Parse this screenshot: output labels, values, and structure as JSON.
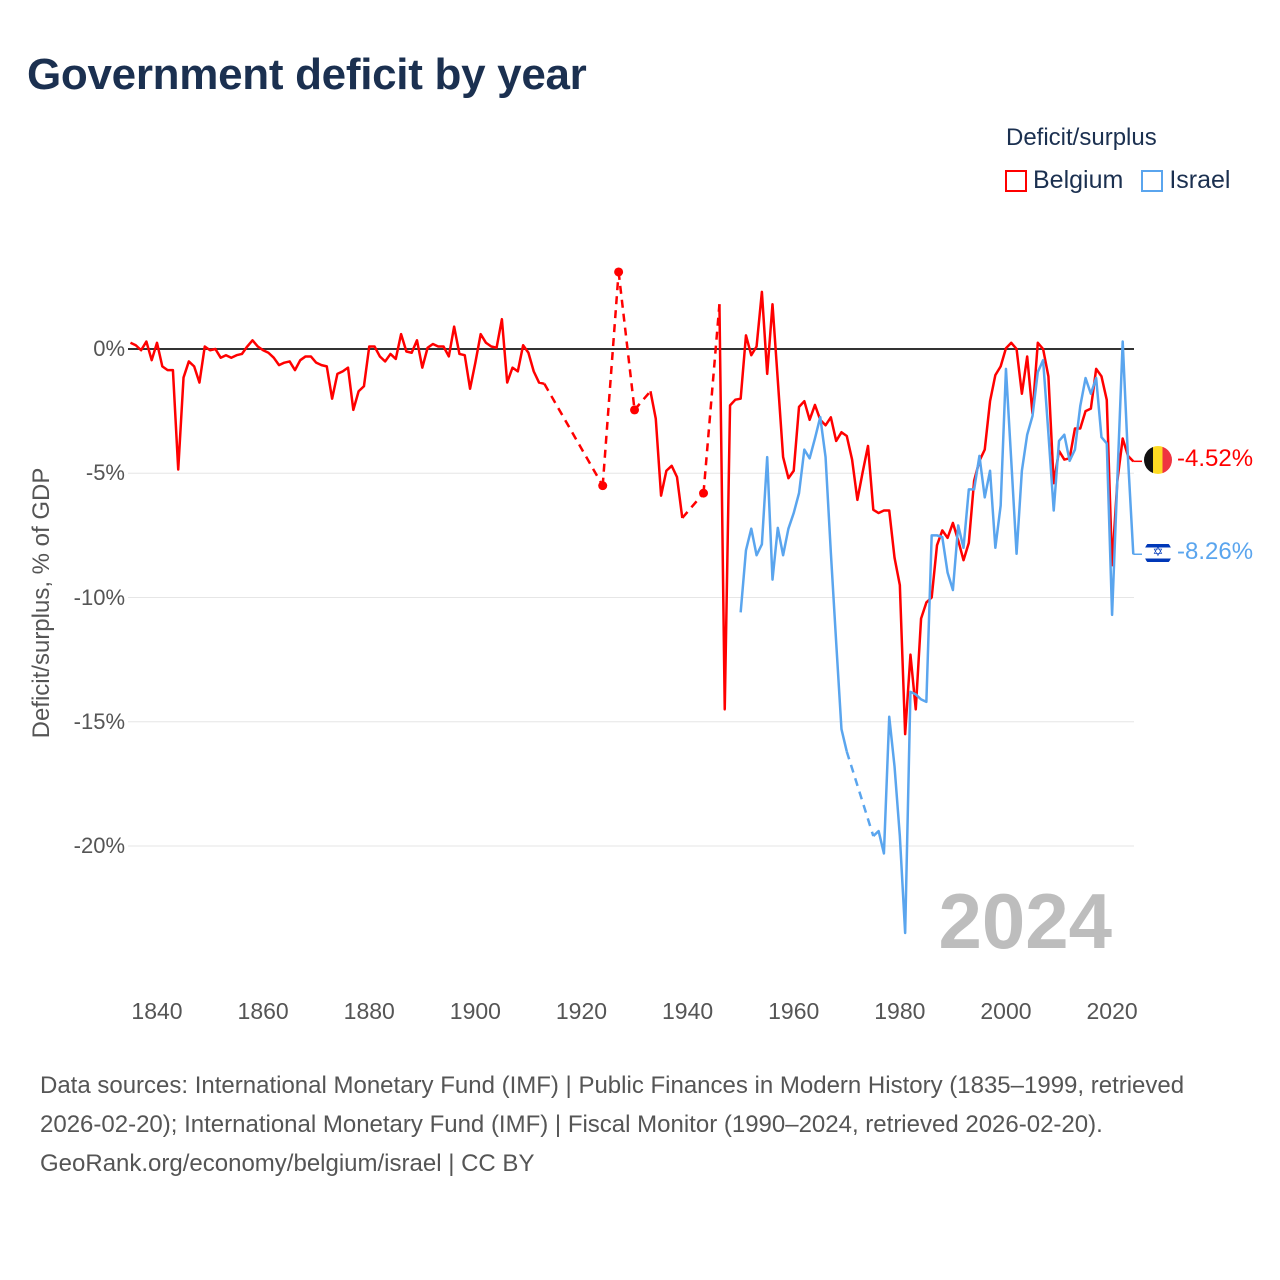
{
  "title": "Government deficit by year",
  "legend": {
    "title": "Deficit/surplus",
    "items": [
      {
        "label": "Belgium",
        "color": "#ff0000"
      },
      {
        "label": "Israel",
        "color": "#5aa5ee"
      }
    ]
  },
  "current_year": "2024",
  "end_labels": {
    "belgium": "-4.52%",
    "israel": "-8.26%"
  },
  "footer": {
    "sources": "Data sources: International Monetary Fund (IMF) | Public Finances in Modern History (1835–1999, retrieved 2026-02-20); International Monetary Fund (IMF) | Fiscal Monitor (1990–2024, retrieved 2026-02-20).",
    "credit": "GeoRank.org/economy/belgium/israel | CC BY"
  },
  "chart_data": {
    "type": "line",
    "title": "Government deficit by year",
    "xlabel": "",
    "ylabel": "Deficit/surplus, % of GDP",
    "xlim": [
      1835,
      2024
    ],
    "ylim": [
      -24,
      3.5
    ],
    "x_ticks": [
      "1840",
      "1860",
      "1880",
      "1900",
      "1920",
      "1940",
      "1960",
      "1980",
      "2000",
      "2020"
    ],
    "y_ticks": [
      "0%",
      "-5%",
      "-10%",
      "-15%",
      "-20%"
    ],
    "grid": true,
    "legend_position": "top-right",
    "series": [
      {
        "name": "Belgium",
        "color": "#ff0000",
        "points": [
          [
            1835,
            0.25
          ],
          [
            1836,
            0.15
          ],
          [
            1837,
            -0.05
          ],
          [
            1838,
            0.3
          ],
          [
            1839,
            -0.45
          ],
          [
            1840,
            0.25
          ],
          [
            1841,
            -0.7
          ],
          [
            1842,
            -0.85
          ],
          [
            1843,
            -0.85
          ],
          [
            1844,
            -4.85
          ],
          [
            1845,
            -1.15
          ],
          [
            1846,
            -0.5
          ],
          [
            1847,
            -0.7
          ],
          [
            1848,
            -1.35
          ],
          [
            1849,
            0.1
          ],
          [
            1850,
            -0.05
          ],
          [
            1851,
            0
          ],
          [
            1852,
            -0.35
          ],
          [
            1853,
            -0.25
          ],
          [
            1854,
            -0.35
          ],
          [
            1855,
            -0.25
          ],
          [
            1856,
            -0.2
          ],
          [
            1857,
            0.1
          ],
          [
            1858,
            0.35
          ],
          [
            1859,
            0.1
          ],
          [
            1860,
            -0.05
          ],
          [
            1861,
            -0.15
          ],
          [
            1862,
            -0.35
          ],
          [
            1863,
            -0.65
          ],
          [
            1864,
            -0.55
          ],
          [
            1865,
            -0.5
          ],
          [
            1866,
            -0.85
          ],
          [
            1867,
            -0.45
          ],
          [
            1868,
            -0.3
          ],
          [
            1869,
            -0.3
          ],
          [
            1870,
            -0.55
          ],
          [
            1871,
            -0.65
          ],
          [
            1872,
            -0.7
          ],
          [
            1873,
            -2.0
          ],
          [
            1874,
            -1.0
          ],
          [
            1875,
            -0.9
          ],
          [
            1876,
            -0.75
          ],
          [
            1877,
            -2.45
          ],
          [
            1878,
            -1.7
          ],
          [
            1879,
            -1.5
          ],
          [
            1880,
            0.1
          ],
          [
            1881,
            0.1
          ],
          [
            1882,
            -0.3
          ],
          [
            1883,
            -0.5
          ],
          [
            1884,
            -0.2
          ],
          [
            1885,
            -0.4
          ],
          [
            1886,
            0.6
          ],
          [
            1887,
            -0.1
          ],
          [
            1888,
            -0.15
          ],
          [
            1889,
            0.35
          ],
          [
            1890,
            -0.75
          ],
          [
            1891,
            0.05
          ],
          [
            1892,
            0.2
          ],
          [
            1893,
            0.1
          ],
          [
            1894,
            0.1
          ],
          [
            1895,
            -0.3
          ],
          [
            1896,
            0.9
          ],
          [
            1897,
            -0.2
          ],
          [
            1898,
            -0.25
          ],
          [
            1899,
            -1.6
          ],
          [
            1900,
            -0.55
          ],
          [
            1901,
            0.6
          ],
          [
            1902,
            0.25
          ],
          [
            1903,
            0.1
          ],
          [
            1904,
            0.05
          ],
          [
            1905,
            1.2
          ],
          [
            1906,
            -1.35
          ],
          [
            1907,
            -0.75
          ],
          [
            1908,
            -0.9
          ],
          [
            1909,
            0.15
          ],
          [
            1910,
            -0.15
          ],
          [
            1911,
            -0.9
          ],
          [
            1912,
            -1.35
          ],
          [
            1913,
            -1.4
          ],
          [
            1924,
            -5.5
          ],
          [
            1927,
            3.1
          ],
          [
            1930,
            -2.45
          ],
          [
            1933,
            -1.7
          ],
          [
            1934,
            -2.8
          ],
          [
            1935,
            -5.9
          ],
          [
            1936,
            -4.9
          ],
          [
            1937,
            -4.7
          ],
          [
            1938,
            -5.15
          ],
          [
            1939,
            -6.8
          ],
          [
            1943,
            -5.8
          ],
          [
            1946,
            1.8
          ],
          [
            1947,
            -14.5
          ],
          [
            1948,
            -2.27
          ],
          [
            1949,
            -2.04
          ],
          [
            1950,
            -2.0
          ],
          [
            1951,
            0.55
          ],
          [
            1952,
            -0.25
          ],
          [
            1953,
            0.1
          ],
          [
            1954,
            2.3
          ],
          [
            1955,
            -1.0
          ],
          [
            1956,
            1.8
          ],
          [
            1957,
            -1.26
          ],
          [
            1958,
            -4.35
          ],
          [
            1959,
            -5.2
          ],
          [
            1960,
            -4.9
          ],
          [
            1961,
            -2.33
          ],
          [
            1962,
            -2.1
          ],
          [
            1963,
            -2.85
          ],
          [
            1964,
            -2.25
          ],
          [
            1965,
            -2.85
          ],
          [
            1966,
            -3.07
          ],
          [
            1967,
            -2.75
          ],
          [
            1968,
            -3.7
          ],
          [
            1969,
            -3.35
          ],
          [
            1970,
            -3.5
          ],
          [
            1971,
            -4.45
          ],
          [
            1972,
            -6.07
          ],
          [
            1973,
            -4.95
          ],
          [
            1974,
            -3.9
          ],
          [
            1975,
            -6.47
          ],
          [
            1976,
            -6.6
          ],
          [
            1977,
            -6.5
          ],
          [
            1978,
            -6.5
          ],
          [
            1979,
            -8.4
          ],
          [
            1980,
            -9.5
          ],
          [
            1981,
            -15.5
          ],
          [
            1982,
            -12.3
          ],
          [
            1983,
            -14.5
          ],
          [
            1984,
            -10.85
          ],
          [
            1985,
            -10.2
          ],
          [
            1986,
            -10.0
          ],
          [
            1987,
            -7.9
          ],
          [
            1988,
            -7.3
          ],
          [
            1989,
            -7.6
          ],
          [
            1990,
            -7.0
          ],
          [
            1991,
            -7.7
          ],
          [
            1992,
            -8.5
          ],
          [
            1993,
            -7.8
          ],
          [
            1994,
            -5.3
          ],
          [
            1995,
            -4.5
          ],
          [
            1996,
            -4.05
          ],
          [
            1997,
            -2.1
          ],
          [
            1998,
            -1.05
          ],
          [
            1999,
            -0.7
          ],
          [
            2000,
            0.03
          ],
          [
            2001,
            0.25
          ],
          [
            2002,
            0
          ],
          [
            2003,
            -1.8
          ],
          [
            2004,
            -0.3
          ],
          [
            2005,
            -2.6
          ],
          [
            2006,
            0.25
          ],
          [
            2007,
            0
          ],
          [
            2008,
            -1.1
          ],
          [
            2009,
            -5.4
          ],
          [
            2010,
            -4.1
          ],
          [
            2011,
            -4.45
          ],
          [
            2012,
            -4.4
          ],
          [
            2013,
            -3.2
          ],
          [
            2014,
            -3.2
          ],
          [
            2015,
            -2.5
          ],
          [
            2016,
            -2.4
          ],
          [
            2017,
            -0.8
          ],
          [
            2018,
            -1.1
          ],
          [
            2019,
            -2.05
          ],
          [
            2020,
            -8.7
          ],
          [
            2021,
            -5.3
          ],
          [
            2022,
            -3.6
          ],
          [
            2023,
            -4.3
          ],
          [
            2024,
            -4.52
          ]
        ]
      },
      {
        "name": "Israel",
        "color": "#5aa5ee",
        "points": [
          [
            1950,
            -10.6
          ],
          [
            1951,
            -8.1
          ],
          [
            1952,
            -7.23
          ],
          [
            1953,
            -8.3
          ],
          [
            1954,
            -7.86
          ],
          [
            1955,
            -4.35
          ],
          [
            1956,
            -9.28
          ],
          [
            1957,
            -7.2
          ],
          [
            1958,
            -8.3
          ],
          [
            1959,
            -7.23
          ],
          [
            1960,
            -6.6
          ],
          [
            1961,
            -5.8
          ],
          [
            1962,
            -4.05
          ],
          [
            1963,
            -4.4
          ],
          [
            1964,
            -3.6
          ],
          [
            1965,
            -2.74
          ],
          [
            1966,
            -4.35
          ],
          [
            1967,
            -8.2
          ],
          [
            1968,
            -11.8
          ],
          [
            1969,
            -15.3
          ],
          [
            1970,
            -16.2
          ],
          [
            1975,
            -19.6
          ],
          [
            1976,
            -19.4
          ],
          [
            1977,
            -20.3
          ],
          [
            1978,
            -14.8
          ],
          [
            1979,
            -16.8
          ],
          [
            1980,
            -19.6
          ],
          [
            1981,
            -23.5
          ],
          [
            1982,
            -13.8
          ],
          [
            1983,
            -13.9
          ],
          [
            1984,
            -14.1
          ],
          [
            1985,
            -14.2
          ],
          [
            1986,
            -7.5
          ],
          [
            1987,
            -7.5
          ],
          [
            1988,
            -7.57
          ],
          [
            1989,
            -9.0
          ],
          [
            1990,
            -9.7
          ],
          [
            1991,
            -7.1
          ],
          [
            1992,
            -8.0
          ],
          [
            1993,
            -5.65
          ],
          [
            1994,
            -5.65
          ],
          [
            1995,
            -4.3
          ],
          [
            1996,
            -5.97
          ],
          [
            1997,
            -4.9
          ],
          [
            1998,
            -8.0
          ],
          [
            1999,
            -6.3
          ],
          [
            2000,
            -0.8
          ],
          [
            2001,
            -4.5
          ],
          [
            2002,
            -8.24
          ],
          [
            2003,
            -4.9
          ],
          [
            2004,
            -3.45
          ],
          [
            2005,
            -2.7
          ],
          [
            2006,
            -0.93
          ],
          [
            2007,
            -0.45
          ],
          [
            2008,
            -3.4
          ],
          [
            2009,
            -6.5
          ],
          [
            2010,
            -3.7
          ],
          [
            2011,
            -3.45
          ],
          [
            2012,
            -4.5
          ],
          [
            2013,
            -4.05
          ],
          [
            2014,
            -2.3
          ],
          [
            2015,
            -1.17
          ],
          [
            2016,
            -1.8
          ],
          [
            2017,
            -1.17
          ],
          [
            2018,
            -3.55
          ],
          [
            2019,
            -3.8
          ],
          [
            2020,
            -10.7
          ],
          [
            2021,
            -5.2
          ],
          [
            2022,
            0.3
          ],
          [
            2023,
            -4.4
          ],
          [
            2024,
            -8.26
          ]
        ]
      }
    ]
  }
}
